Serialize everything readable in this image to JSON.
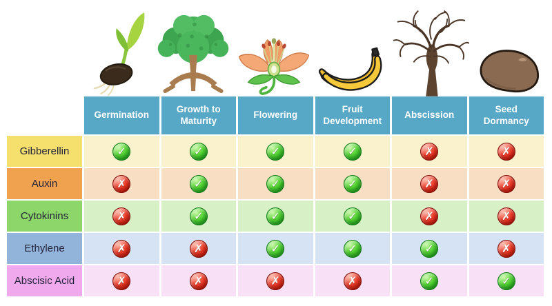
{
  "table": {
    "header_bg": "#57A7C6",
    "header_text_color": "#FFFFFF",
    "check_symbol": "✓",
    "cross_symbol": "✗",
    "check_color": "#2DB82D",
    "cross_color": "#E02B1D",
    "columns": [
      {
        "label": "Germination",
        "icon": "seedling-icon"
      },
      {
        "label": "Growth to Maturity",
        "icon": "tree-icon"
      },
      {
        "label": "Flowering",
        "icon": "flower-icon"
      },
      {
        "label": "Fruit Development",
        "icon": "bananas-icon"
      },
      {
        "label": "Abscission",
        "icon": "bare-tree-icon"
      },
      {
        "label": "Seed Dormancy",
        "icon": "seed-icon"
      }
    ],
    "rows": [
      {
        "label": "Gibberellin",
        "header_color": "#F5DF6D",
        "cell_color": "#FAF2CD",
        "values": [
          true,
          true,
          true,
          true,
          false,
          false
        ]
      },
      {
        "label": "Auxin",
        "header_color": "#F0A24F",
        "cell_color": "#F8DEC3",
        "values": [
          false,
          true,
          true,
          true,
          false,
          false
        ]
      },
      {
        "label": "Cytokinins",
        "header_color": "#8DD669",
        "cell_color": "#D8F0C6",
        "values": [
          false,
          true,
          true,
          true,
          false,
          false
        ]
      },
      {
        "label": "Ethylene",
        "header_color": "#92B4DA",
        "cell_color": "#D6E3F4",
        "values": [
          false,
          false,
          true,
          true,
          true,
          false
        ]
      },
      {
        "label": "Abscisic Acid",
        "header_color": "#F0A9EC",
        "cell_color": "#F8E0F7",
        "values": [
          false,
          false,
          false,
          false,
          true,
          true
        ]
      }
    ]
  },
  "chart_data": {
    "type": "table",
    "title": "",
    "columns": [
      "Germination",
      "Growth to Maturity",
      "Flowering",
      "Fruit Development",
      "Abscission",
      "Seed Dormancy"
    ],
    "rows": [
      "Gibberellin",
      "Auxin",
      "Cytokinins",
      "Ethylene",
      "Abscisic Acid"
    ],
    "matrix": [
      [
        "yes",
        "yes",
        "yes",
        "yes",
        "no",
        "no"
      ],
      [
        "no",
        "yes",
        "yes",
        "yes",
        "no",
        "no"
      ],
      [
        "no",
        "yes",
        "yes",
        "yes",
        "no",
        "no"
      ],
      [
        "no",
        "no",
        "yes",
        "yes",
        "yes",
        "no"
      ],
      [
        "no",
        "no",
        "no",
        "no",
        "yes",
        "yes"
      ]
    ],
    "legend_position": "none",
    "grid": "off"
  }
}
